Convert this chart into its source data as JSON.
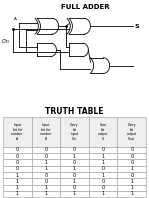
{
  "title": "FULL ADDER",
  "truth_table_title": "TRUTH TABLE",
  "headers": [
    "Input\nbit for\nnumber\nA",
    "Input\nbit for\nnumber\nB",
    "Carry\nbit\ninput\nCin",
    "Sum\nbit\noutput\nS",
    "Carry\nbit\noutput\nCout"
  ],
  "table_data": [
    [
      "0",
      "0",
      "0",
      "0",
      "0"
    ],
    [
      "0",
      "0",
      "1",
      "1",
      "0"
    ],
    [
      "0",
      "1",
      "0",
      "1",
      "0"
    ],
    [
      "0",
      "1",
      "1",
      "0",
      "1"
    ],
    [
      "1",
      "0",
      "0",
      "1",
      "0"
    ],
    [
      "1",
      "0",
      "1",
      "0",
      "1"
    ],
    [
      "1",
      "1",
      "0",
      "0",
      "1"
    ],
    [
      "1",
      "1",
      "1",
      "1",
      "1"
    ]
  ],
  "bg_color": "#ffffff",
  "text_color": "#000000",
  "border_color": "#aaaaaa",
  "lw": 0.6
}
